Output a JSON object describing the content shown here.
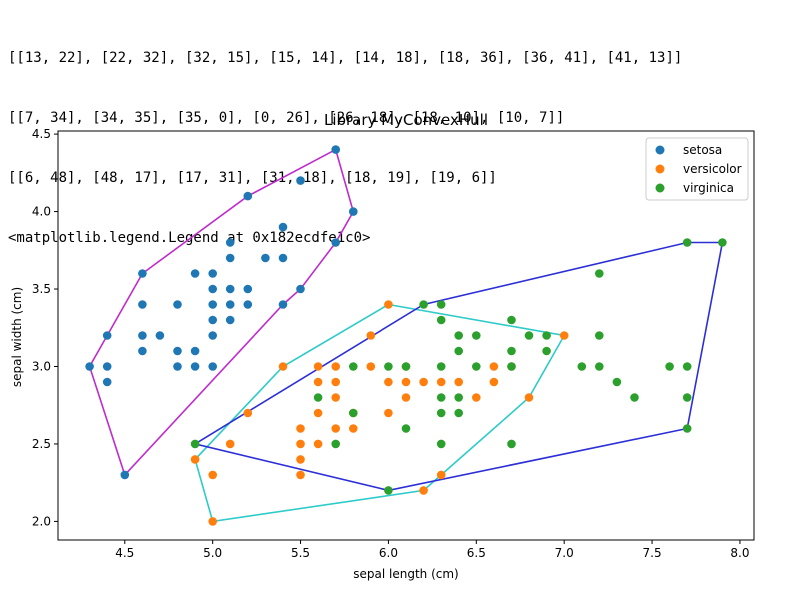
{
  "output": {
    "lines": [
      "[[13, 22], [22, 32], [32, 15], [15, 14], [14, 18], [18, 36], [36, 41], [41, 13]]",
      "[[7, 34], [34, 35], [35, 0], [0, 26], [26, 18], [18, 10], [10, 7]]",
      "[[6, 48], [48, 17], [17, 31], [31, 18], [18, 19], [19, 6]]",
      "<matplotlib.legend.Legend at 0x182ecdfe1c0>"
    ]
  },
  "chart_data": {
    "type": "scatter",
    "title": "Library MyConvexHull",
    "xlabel": "sepal length (cm)",
    "ylabel": "sepal width (cm)",
    "xlim": [
      4.12,
      8.08
    ],
    "ylim": [
      1.88,
      4.52
    ],
    "xticks": [
      "4.5",
      "5.0",
      "5.5",
      "6.0",
      "6.5",
      "7.0",
      "7.5",
      "8.0"
    ],
    "yticks": [
      "2.0",
      "2.5",
      "3.0",
      "3.5",
      "4.0",
      "4.5"
    ],
    "grid": false,
    "legend_position": "top-right",
    "series": [
      {
        "name": "setosa",
        "color": "#1f77b4",
        "points": [
          [
            5.7,
            4.4
          ],
          [
            5.5,
            4.2
          ],
          [
            5.2,
            4.1
          ],
          [
            5.8,
            4.0
          ],
          [
            5.4,
            3.9
          ],
          [
            5.1,
            3.8
          ],
          [
            5.7,
            3.8
          ],
          [
            5.1,
            3.7
          ],
          [
            5.3,
            3.7
          ],
          [
            5.4,
            3.7
          ],
          [
            4.6,
            3.6
          ],
          [
            4.9,
            3.6
          ],
          [
            5.0,
            3.6
          ],
          [
            5.0,
            3.5
          ],
          [
            5.1,
            3.5
          ],
          [
            5.2,
            3.5
          ],
          [
            5.5,
            3.5
          ],
          [
            4.6,
            3.4
          ],
          [
            4.8,
            3.4
          ],
          [
            5.0,
            3.4
          ],
          [
            5.1,
            3.4
          ],
          [
            5.2,
            3.4
          ],
          [
            5.4,
            3.4
          ],
          [
            5.0,
            3.3
          ],
          [
            5.1,
            3.3
          ],
          [
            4.4,
            3.2
          ],
          [
            4.6,
            3.2
          ],
          [
            4.7,
            3.2
          ],
          [
            5.0,
            3.2
          ],
          [
            4.6,
            3.1
          ],
          [
            4.8,
            3.1
          ],
          [
            4.9,
            3.1
          ],
          [
            4.3,
            3.0
          ],
          [
            4.4,
            3.0
          ],
          [
            4.8,
            3.0
          ],
          [
            4.9,
            3.0
          ],
          [
            5.0,
            3.0
          ],
          [
            4.4,
            2.9
          ],
          [
            4.5,
            2.3
          ]
        ]
      },
      {
        "name": "versicolor",
        "color": "#ff7f0e",
        "points": [
          [
            6.0,
            3.4
          ],
          [
            5.9,
            3.2
          ],
          [
            7.0,
            3.2
          ],
          [
            5.4,
            3.0
          ],
          [
            5.6,
            3.0
          ],
          [
            5.7,
            3.0
          ],
          [
            5.9,
            3.0
          ],
          [
            6.6,
            3.0
          ],
          [
            6.7,
            3.0
          ],
          [
            6.1,
            3.0
          ],
          [
            5.6,
            2.9
          ],
          [
            5.7,
            2.9
          ],
          [
            6.0,
            2.9
          ],
          [
            6.1,
            2.9
          ],
          [
            6.2,
            2.9
          ],
          [
            6.3,
            2.9
          ],
          [
            6.4,
            2.9
          ],
          [
            6.6,
            2.9
          ],
          [
            5.7,
            2.8
          ],
          [
            6.1,
            2.8
          ],
          [
            6.5,
            2.8
          ],
          [
            6.8,
            2.8
          ],
          [
            5.6,
            2.7
          ],
          [
            5.8,
            2.7
          ],
          [
            6.0,
            2.7
          ],
          [
            5.2,
            2.7
          ],
          [
            5.5,
            2.6
          ],
          [
            5.7,
            2.6
          ],
          [
            5.8,
            2.6
          ],
          [
            5.5,
            2.5
          ],
          [
            5.6,
            2.5
          ],
          [
            5.1,
            2.5
          ],
          [
            5.5,
            2.4
          ],
          [
            4.9,
            2.4
          ],
          [
            5.0,
            2.3
          ],
          [
            5.5,
            2.3
          ],
          [
            6.3,
            2.3
          ],
          [
            6.2,
            2.2
          ],
          [
            5.0,
            2.0
          ]
        ]
      },
      {
        "name": "virginica",
        "color": "#2ca02c",
        "points": [
          [
            7.9,
            3.8
          ],
          [
            7.7,
            3.8
          ],
          [
            7.2,
            3.6
          ],
          [
            6.2,
            3.4
          ],
          [
            6.3,
            3.4
          ],
          [
            6.3,
            3.3
          ],
          [
            6.7,
            3.3
          ],
          [
            6.4,
            3.2
          ],
          [
            6.5,
            3.2
          ],
          [
            6.8,
            3.2
          ],
          [
            6.9,
            3.2
          ],
          [
            7.2,
            3.2
          ],
          [
            6.4,
            3.1
          ],
          [
            6.7,
            3.1
          ],
          [
            6.9,
            3.1
          ],
          [
            6.5,
            3.0
          ],
          [
            5.8,
            3.0
          ],
          [
            6.0,
            3.0
          ],
          [
            6.3,
            3.0
          ],
          [
            6.7,
            3.0
          ],
          [
            7.1,
            3.0
          ],
          [
            7.2,
            3.0
          ],
          [
            7.6,
            3.0
          ],
          [
            7.7,
            3.0
          ],
          [
            6.1,
            3.0
          ],
          [
            7.3,
            2.9
          ],
          [
            6.3,
            2.8
          ],
          [
            6.4,
            2.8
          ],
          [
            7.4,
            2.8
          ],
          [
            7.7,
            2.8
          ],
          [
            5.6,
            2.8
          ],
          [
            5.8,
            2.7
          ],
          [
            6.3,
            2.7
          ],
          [
            6.4,
            2.7
          ],
          [
            6.1,
            2.6
          ],
          [
            7.7,
            2.6
          ],
          [
            6.3,
            2.5
          ],
          [
            6.7,
            2.5
          ],
          [
            5.7,
            2.5
          ],
          [
            4.9,
            2.5
          ],
          [
            6.0,
            2.2
          ]
        ]
      }
    ],
    "hulls": [
      {
        "color": "#bf2ccc",
        "points": [
          [
            5.7,
            4.4
          ],
          [
            5.8,
            4.0
          ],
          [
            5.7,
            3.8
          ],
          [
            5.5,
            3.5
          ],
          [
            5.4,
            3.4
          ],
          [
            4.5,
            2.3
          ],
          [
            4.3,
            3.0
          ],
          [
            4.4,
            3.2
          ],
          [
            4.6,
            3.6
          ],
          [
            5.2,
            4.1
          ],
          [
            5.7,
            4.4
          ]
        ]
      },
      {
        "color": "#2dcbc9",
        "points": [
          [
            6.0,
            3.4
          ],
          [
            7.0,
            3.2
          ],
          [
            6.8,
            2.8
          ],
          [
            6.3,
            2.3
          ],
          [
            6.2,
            2.2
          ],
          [
            5.0,
            2.0
          ],
          [
            4.9,
            2.4
          ],
          [
            5.4,
            3.0
          ],
          [
            6.0,
            3.4
          ]
        ]
      },
      {
        "color": "#2c2fd7",
        "points": [
          [
            7.9,
            3.8
          ],
          [
            7.7,
            2.6
          ],
          [
            6.0,
            2.2
          ],
          [
            4.9,
            2.5
          ],
          [
            6.2,
            3.4
          ],
          [
            7.7,
            3.8
          ],
          [
            7.9,
            3.8
          ]
        ]
      }
    ]
  }
}
